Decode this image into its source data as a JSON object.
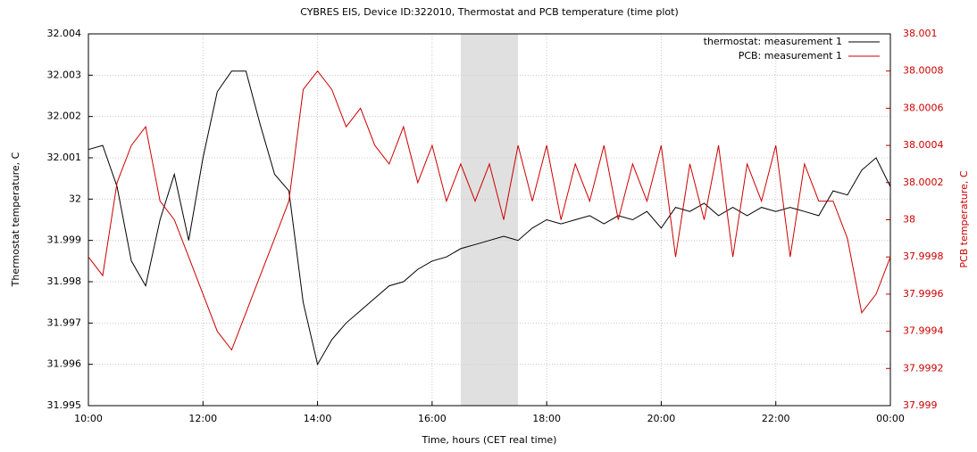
{
  "chart_data": {
    "type": "line",
    "title": "CYBRES EIS, Device ID:322010, Thermostat and PCB temperature (time plot)",
    "x_label": "Time, hours (CET real time)",
    "y_label": "Thermostat temperature, C",
    "y2_label": "PCB temperature, C",
    "x": [
      10,
      10.25,
      10.5,
      10.75,
      11,
      11.25,
      11.5,
      11.75,
      12,
      12.25,
      12.5,
      12.75,
      13,
      13.25,
      13.5,
      13.75,
      14,
      14.25,
      14.5,
      14.75,
      15,
      15.25,
      15.5,
      15.75,
      16,
      16.25,
      16.5,
      16.75,
      17,
      17.25,
      17.5,
      17.75,
      18,
      18.25,
      18.5,
      18.75,
      19,
      19.25,
      19.5,
      19.75,
      20,
      20.25,
      20.5,
      20.75,
      21,
      21.25,
      21.5,
      21.75,
      22,
      22.25,
      22.5,
      22.75,
      23,
      23.25,
      23.5,
      23.75,
      24
    ],
    "series": [
      {
        "name": "thermostat: measurement 1",
        "color": "#000000",
        "axis": "y",
        "values": [
          32.0012,
          32.0013,
          32.0003,
          31.9985,
          31.9979,
          31.9995,
          32.0006,
          31.999,
          32.001,
          32.0026,
          32.0031,
          32.0031,
          32.0018,
          32.0006,
          32.0002,
          31.9975,
          31.996,
          31.9966,
          31.997,
          31.9973,
          31.9976,
          31.9979,
          31.998,
          31.9983,
          31.9985,
          31.9986,
          31.9988,
          31.9989,
          31.999,
          31.9991,
          31.999,
          31.9993,
          31.9995,
          31.9994,
          31.9995,
          31.9996,
          31.9994,
          31.9996,
          31.9995,
          31.9997,
          31.9993,
          31.9998,
          31.9997,
          31.9999,
          31.9996,
          31.9998,
          31.9996,
          31.9998,
          31.9997,
          31.9998,
          31.9997,
          31.9996,
          32.0002,
          32.0001,
          32.0007,
          32.001,
          32.0003
        ]
      },
      {
        "name": "PCB: measurement 1",
        "color": "#cc0000",
        "axis": "y2",
        "values": [
          37.9998,
          37.9997,
          38.0002,
          38.0004,
          38.0005,
          38.0001,
          38.0,
          37.9998,
          37.9996,
          37.9994,
          37.9993,
          37.9995,
          37.9997,
          37.9999,
          38.0001,
          38.0007,
          38.0008,
          38.0007,
          38.0005,
          38.0006,
          38.0004,
          38.0003,
          38.0005,
          38.0002,
          38.0004,
          38.0001,
          38.0003,
          38.0001,
          38.0003,
          38.0,
          38.0004,
          38.0001,
          38.0004,
          38.0,
          38.0003,
          38.0001,
          38.0004,
          38.0,
          38.0003,
          38.0001,
          38.0004,
          37.9998,
          38.0003,
          38.0,
          38.0004,
          37.9998,
          38.0003,
          38.0001,
          38.0004,
          37.9998,
          38.0003,
          38.0001,
          38.0001,
          37.9999,
          37.9995,
          37.9996,
          37.9998
        ]
      }
    ],
    "xlim": [
      10,
      24
    ],
    "xticks": [
      {
        "value": 10,
        "label": "10:00"
      },
      {
        "value": 12,
        "label": "12:00"
      },
      {
        "value": 14,
        "label": "14:00"
      },
      {
        "value": 16,
        "label": "16:00"
      },
      {
        "value": 18,
        "label": "18:00"
      },
      {
        "value": 20,
        "label": "20:00"
      },
      {
        "value": 22,
        "label": "22:00"
      },
      {
        "value": 24,
        "label": "00:00"
      }
    ],
    "ylim": [
      31.995,
      32.004
    ],
    "yticks": [
      31.995,
      31.996,
      31.997,
      31.998,
      31.999,
      32,
      32.001,
      32.002,
      32.003,
      32.004
    ],
    "y2lim": [
      37.999,
      38.001
    ],
    "y2ticks": [
      37.999,
      37.9992,
      37.9994,
      37.9996,
      37.9998,
      38,
      38.0002,
      38.0004,
      38.0006,
      38.0008,
      38.001
    ],
    "y2_color": "#cc0000",
    "highlight": [
      16.5,
      17.5
    ],
    "grid": true,
    "legend": "upper right"
  }
}
